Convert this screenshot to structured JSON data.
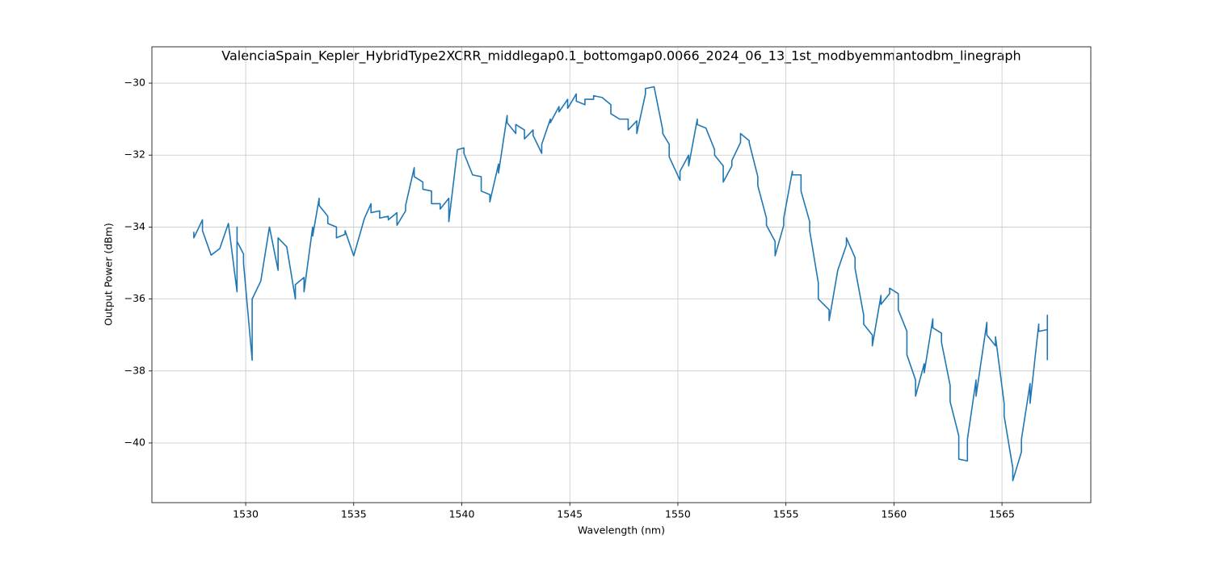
{
  "chart_data": {
    "type": "line",
    "title": "ValenciaSpain_Kepler_HybridType2XCRR_middlegap0.1_bottomgap0.0066_2024_06_13_1st_modbyemmantodbm_linegraph",
    "x_label": "Wavelength (nm)",
    "y_label": "Output Power (dBm)",
    "x": [
      1527.6,
      1527.6,
      1528.0,
      1528.0,
      1528.4,
      1528.8,
      1529.2,
      1529.6,
      1529.6,
      1529.6,
      1529.9,
      1529.9,
      1530.3,
      1530.3,
      1530.7,
      1531.1,
      1531.5,
      1531.5,
      1531.9,
      1532.3,
      1532.3,
      1532.7,
      1532.7,
      1533.1,
      1533.1,
      1533.4,
      1533.4,
      1533.8,
      1533.8,
      1534.2,
      1534.2,
      1534.6,
      1534.6,
      1535.0,
      1535.5,
      1535.8,
      1535.8,
      1536.2,
      1536.2,
      1536.6,
      1536.6,
      1537.0,
      1537.0,
      1537.4,
      1537.4,
      1537.8,
      1537.8,
      1538.2,
      1538.2,
      1538.6,
      1538.6,
      1539.0,
      1539.0,
      1539.4,
      1539.4,
      1539.8,
      1540.1,
      1540.1,
      1540.5,
      1540.9,
      1540.9,
      1541.3,
      1541.3,
      1541.7,
      1541.7,
      1542.1,
      1542.1,
      1542.5,
      1542.5,
      1542.9,
      1542.9,
      1543.3,
      1543.3,
      1543.7,
      1543.7,
      1544.1,
      1544.1,
      1544.5,
      1544.5,
      1544.9,
      1544.9,
      1545.3,
      1545.3,
      1545.7,
      1545.7,
      1546.1,
      1546.1,
      1546.5,
      1546.9,
      1546.9,
      1547.3,
      1547.7,
      1547.7,
      1548.1,
      1548.1,
      1548.5,
      1548.5,
      1548.9,
      1549.3,
      1549.3,
      1549.6,
      1549.6,
      1550.1,
      1550.1,
      1550.5,
      1550.5,
      1550.9,
      1550.9,
      1551.3,
      1551.7,
      1551.7,
      1552.1,
      1552.1,
      1552.5,
      1552.5,
      1552.9,
      1552.9,
      1553.3,
      1553.3,
      1553.7,
      1553.7,
      1554.1,
      1554.1,
      1554.5,
      1554.5,
      1554.9,
      1554.9,
      1555.3,
      1555.3,
      1555.7,
      1555.7,
      1556.1,
      1556.1,
      1556.5,
      1556.5,
      1557.0,
      1557.0,
      1557.4,
      1557.8,
      1557.8,
      1558.2,
      1558.2,
      1558.6,
      1558.6,
      1559.0,
      1559.0,
      1559.4,
      1559.4,
      1559.8,
      1559.8,
      1560.2,
      1560.2,
      1560.6,
      1560.6,
      1561.0,
      1561.0,
      1561.4,
      1561.4,
      1561.8,
      1561.8,
      1562.2,
      1562.2,
      1562.6,
      1562.6,
      1563.0,
      1563.0,
      1563.4,
      1563.4,
      1563.8,
      1563.8,
      1564.3,
      1564.3,
      1564.7,
      1564.7,
      1565.1,
      1565.1,
      1565.5,
      1565.5,
      1565.9,
      1565.9,
      1566.3,
      1566.3,
      1566.7,
      1566.7,
      1567.1,
      1567.1,
      1567.1
    ],
    "series": [
      {
        "name": "Output Power",
        "color": "#1f77b4",
        "values": [
          -34.13,
          -34.3,
          -33.8,
          -34.1,
          -34.78,
          -34.6,
          -33.9,
          -35.8,
          -34.0,
          -34.4,
          -34.75,
          -35.0,
          -37.7,
          -36.0,
          -35.5,
          -34.0,
          -35.2,
          -34.3,
          -34.55,
          -36.0,
          -35.6,
          -35.4,
          -35.8,
          -34.0,
          -34.25,
          -33.2,
          -33.4,
          -33.7,
          -33.9,
          -34.0,
          -34.3,
          -34.2,
          -34.1,
          -34.8,
          -33.75,
          -33.35,
          -33.6,
          -33.55,
          -33.75,
          -33.7,
          -33.8,
          -33.6,
          -33.95,
          -33.55,
          -33.4,
          -32.35,
          -32.6,
          -32.75,
          -32.95,
          -33.0,
          -33.35,
          -33.35,
          -33.5,
          -33.2,
          -33.85,
          -31.85,
          -31.8,
          -31.95,
          -32.55,
          -32.6,
          -33.0,
          -33.1,
          -33.3,
          -32.25,
          -32.5,
          -30.9,
          -31.1,
          -31.4,
          -31.15,
          -31.3,
          -31.55,
          -31.3,
          -31.45,
          -31.95,
          -31.7,
          -31.0,
          -31.1,
          -30.65,
          -30.8,
          -30.45,
          -30.7,
          -30.3,
          -30.5,
          -30.6,
          -30.45,
          -30.45,
          -30.35,
          -30.4,
          -30.6,
          -30.85,
          -31.0,
          -31.0,
          -31.3,
          -31.05,
          -31.4,
          -30.3,
          -30.15,
          -30.1,
          -31.3,
          -31.4,
          -31.7,
          -32.05,
          -32.7,
          -32.45,
          -32.0,
          -32.3,
          -31.0,
          -31.15,
          -31.25,
          -31.85,
          -32.0,
          -32.3,
          -32.75,
          -32.3,
          -32.15,
          -31.65,
          -31.4,
          -31.6,
          -31.65,
          -32.6,
          -32.85,
          -33.75,
          -33.95,
          -34.4,
          -34.8,
          -33.95,
          -33.75,
          -32.45,
          -32.55,
          -32.55,
          -33.0,
          -33.85,
          -34.1,
          -35.55,
          -36.0,
          -36.3,
          -36.6,
          -35.2,
          -34.5,
          -34.3,
          -34.85,
          -35.15,
          -36.45,
          -36.7,
          -37.0,
          -37.3,
          -35.9,
          -36.15,
          -35.85,
          -35.7,
          -35.85,
          -36.3,
          -36.9,
          -37.55,
          -38.25,
          -38.7,
          -37.8,
          -38.05,
          -36.55,
          -36.8,
          -36.95,
          -37.2,
          -38.4,
          -38.85,
          -39.8,
          -40.45,
          -40.5,
          -39.9,
          -38.25,
          -38.7,
          -36.65,
          -37.0,
          -37.3,
          -37.05,
          -38.9,
          -39.25,
          -40.7,
          -41.05,
          -40.25,
          -39.9,
          -38.35,
          -38.9,
          -36.7,
          -36.9,
          -36.85,
          -36.45,
          -37.7
        ]
      }
    ],
    "xlim": [
      1525.66,
      1569.11
    ],
    "ylim": [
      -41.66,
      -28.99
    ],
    "xticks": [
      1530,
      1535,
      1540,
      1545,
      1550,
      1555,
      1560,
      1565
    ],
    "yticks": [
      {
        "value": -40,
        "label": "−40"
      },
      {
        "value": -38,
        "label": "−38"
      },
      {
        "value": -36,
        "label": "−36"
      },
      {
        "value": -34,
        "label": "−34"
      },
      {
        "value": -32,
        "label": "−32"
      },
      {
        "value": -30,
        "label": "−30"
      }
    ],
    "grid": true
  }
}
